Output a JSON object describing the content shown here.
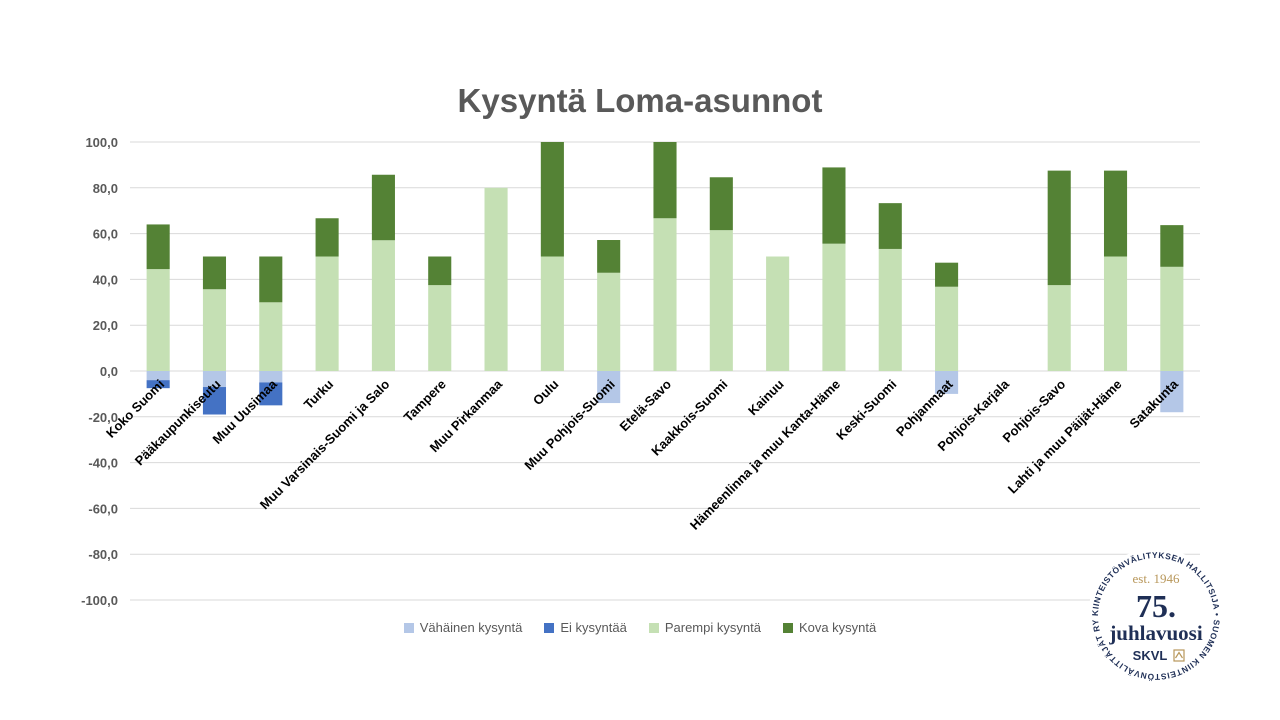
{
  "chart_data": {
    "type": "bar",
    "stacked": true,
    "title": "Kysyntä Loma-asunnot",
    "xlabel": "",
    "ylabel": "",
    "ylim": [
      -100,
      100
    ],
    "ytick_step": 20,
    "ytick_labels": [
      "100,0",
      "80,0",
      "60,0",
      "40,0",
      "20,0",
      "0,0",
      "-20,0",
      "-40,0",
      "-60,0",
      "-80,0",
      "-100,0"
    ],
    "grid": true,
    "legend_position": "bottom",
    "categories": [
      "Koko Suomi",
      "Pääkaupunkiseutu",
      "Muu Uusimaa",
      "Turku",
      "Muu Varsinais-Suomi ja Salo",
      "Tampere",
      "Muu Pirkanmaa",
      "Oulu",
      "Muu Pohjois-Suomi",
      "Etelä-Savo",
      "Kaakkois-Suomi",
      "Kainuu",
      "Hämeenlinna ja muu Kanta-Häme",
      "Keski-Suomi",
      "Pohjanmaat",
      "Pohjois-Karjala",
      "Pohjois-Savo",
      "Lahti ja muu Päijät-Häme",
      "Satakunta"
    ],
    "series": [
      {
        "name": "Vähäinen kysyntä",
        "color": "#b4c7e7",
        "values": [
          -4,
          -7,
          -5,
          0,
          0,
          0,
          0,
          0,
          -14,
          0,
          0,
          0,
          0,
          0,
          -10,
          0,
          0,
          0,
          -18
        ]
      },
      {
        "name": "Ei kysyntää",
        "color": "#4472c4",
        "values": [
          -3.5,
          -12,
          -10,
          0,
          0,
          0,
          0,
          0,
          0,
          0,
          0,
          0,
          0,
          0,
          0,
          0,
          0,
          0,
          0
        ]
      },
      {
        "name": "Parempi kysyntä",
        "color": "#c5e0b4",
        "values": [
          44.5,
          35.7,
          30,
          50,
          57.1,
          37.5,
          80,
          50,
          42.9,
          66.7,
          61.5,
          50,
          55.6,
          53.3,
          36.8,
          0,
          37.5,
          50,
          45.5
        ]
      },
      {
        "name": "Kova kysyntä",
        "color": "#548235",
        "values": [
          19.5,
          14.3,
          20,
          16.7,
          28.6,
          12.5,
          0,
          50,
          14.3,
          33.3,
          23.1,
          0,
          33.3,
          20,
          10.5,
          0,
          50,
          37.5,
          18.2
        ]
      }
    ]
  },
  "badge": {
    "arc_text": "KIINTEISTÖNVÄLITYKSEN HALLITSIJA • SUOMEN KIINTEISTÖNVÄLITTÄJÄT RY •",
    "est": "est. 1946",
    "number": "75.",
    "word": "juhlavuosi",
    "brand": "SKVL",
    "navy": "#1f2f56",
    "gold": "#b8975a"
  }
}
